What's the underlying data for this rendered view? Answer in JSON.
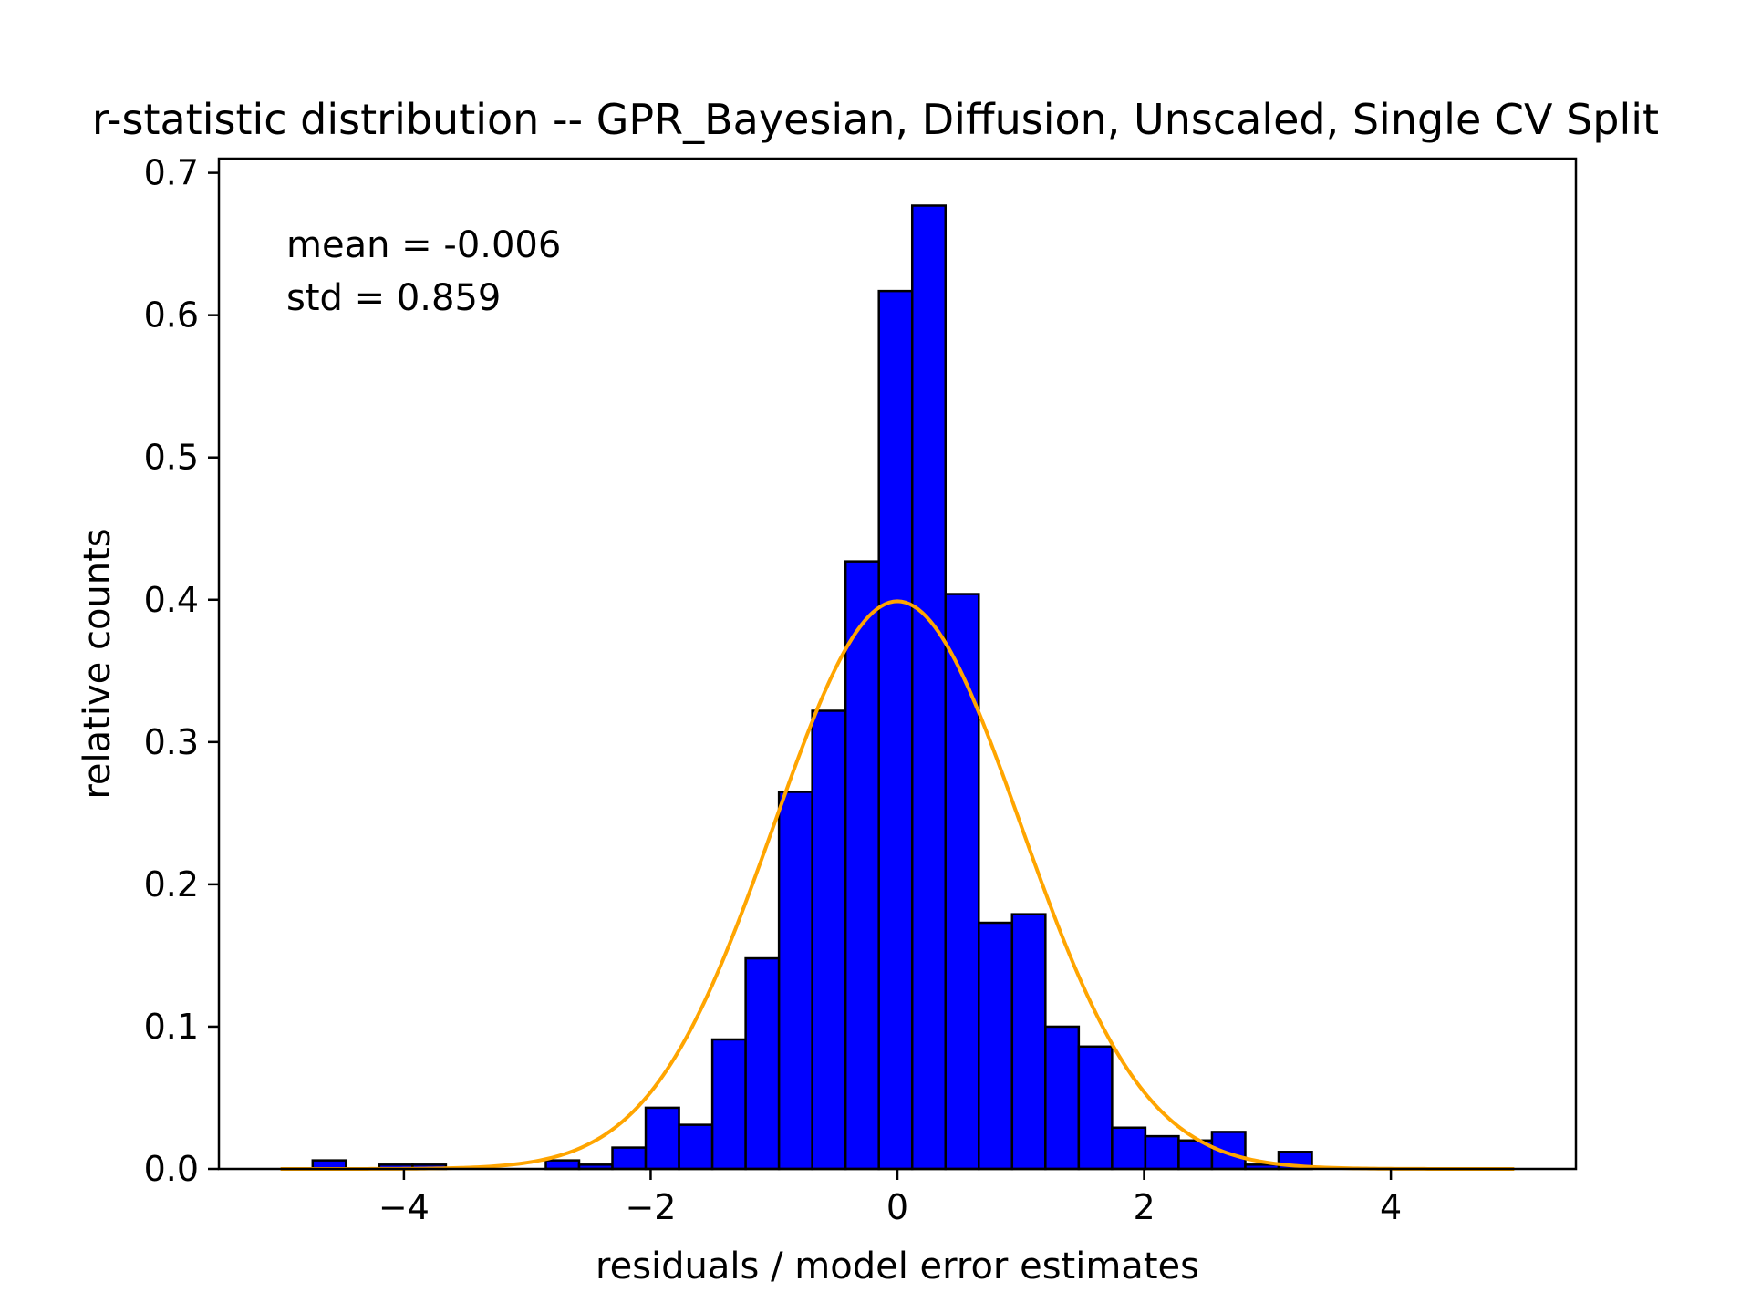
{
  "chart_data": {
    "type": "bar",
    "title": "r-statistic distribution -- GPR_Bayesian, Diffusion, Unscaled, Single CV Split",
    "xlabel": "residuals / model error estimates",
    "ylabel": "relative counts",
    "xlim": [
      -5.5,
      5.5
    ],
    "ylim": [
      0,
      0.71
    ],
    "xticks": [
      -4,
      -2,
      0,
      2,
      4
    ],
    "xtick_labels": [
      "−4",
      "−2",
      "0",
      "2",
      "4"
    ],
    "yticks": [
      0.0,
      0.1,
      0.2,
      0.3,
      0.4,
      0.5,
      0.6,
      0.7
    ],
    "ytick_labels": [
      "0.0",
      "0.1",
      "0.2",
      "0.3",
      "0.4",
      "0.5",
      "0.6",
      "0.7"
    ],
    "grid": false,
    "annotations": [
      "mean = -0.006",
      "std = 0.859"
    ],
    "bin_width": 0.27,
    "bin_starts": [
      -4.74,
      -4.47,
      -4.2,
      -3.93,
      -3.66,
      -3.39,
      -3.12,
      -2.85,
      -2.58,
      -2.31,
      -2.04,
      -1.77,
      -1.5,
      -1.23,
      -0.96,
      -0.69,
      -0.42,
      -0.15,
      0.12,
      0.39,
      0.66,
      0.93,
      1.2,
      1.47,
      1.74,
      2.01,
      2.28,
      2.55,
      2.82,
      3.09
    ],
    "values": [
      0.006,
      0.0,
      0.003,
      0.003,
      0.0,
      0.0,
      0.0,
      0.006,
      0.003,
      0.015,
      0.043,
      0.031,
      0.091,
      0.148,
      0.265,
      0.322,
      0.427,
      0.617,
      0.677,
      0.404,
      0.173,
      0.179,
      0.1,
      0.086,
      0.029,
      0.023,
      0.02,
      0.026,
      0.003,
      0.012
    ],
    "bar_color": "#0000ff",
    "bar_edge_color": "#000000",
    "curve": {
      "type": "normal-pdf",
      "mean": 0,
      "std": 1,
      "x_range": [
        -5,
        5
      ],
      "color": "#ffa500"
    }
  }
}
